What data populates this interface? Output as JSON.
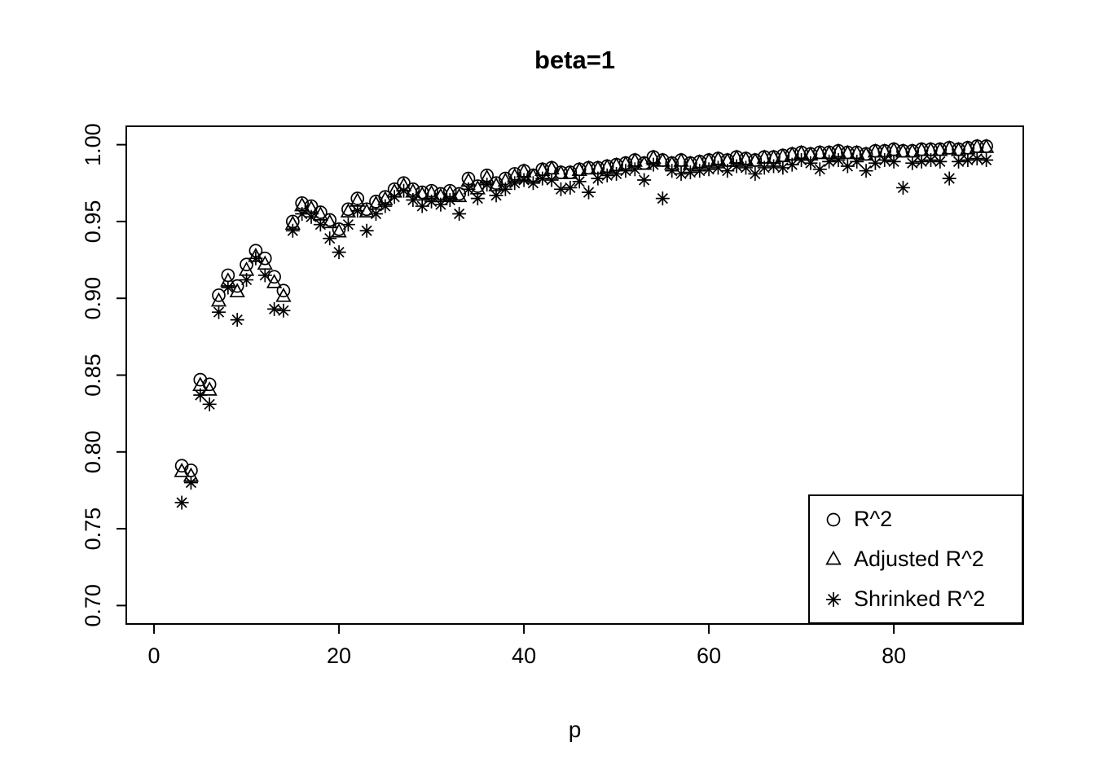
{
  "page": {
    "background": "#ffffff",
    "foreground": "#000000"
  },
  "chart_data": {
    "type": "scatter",
    "title": "beta=1",
    "xlabel": "p",
    "ylabel": "",
    "x_ticks": [
      0,
      20,
      40,
      60,
      80
    ],
    "y_ticks": [
      0.7,
      0.75,
      0.8,
      0.85,
      0.9,
      0.95,
      1.0
    ],
    "y_tick_labels": [
      "0.70",
      "0.75",
      "0.80",
      "0.85",
      "0.90",
      "0.95",
      "1.00"
    ],
    "xlim": [
      -3,
      94
    ],
    "ylim": [
      0.688,
      1.012
    ],
    "grid": false,
    "legend_position": "bottom-right",
    "x": [
      3,
      4,
      5,
      6,
      7,
      8,
      9,
      10,
      11,
      12,
      13,
      14,
      15,
      16,
      17,
      18,
      19,
      20,
      21,
      22,
      23,
      24,
      25,
      26,
      27,
      28,
      29,
      30,
      31,
      32,
      33,
      34,
      35,
      36,
      37,
      38,
      39,
      40,
      41,
      42,
      43,
      44,
      45,
      46,
      47,
      48,
      49,
      50,
      51,
      52,
      53,
      54,
      55,
      56,
      57,
      58,
      59,
      60,
      61,
      62,
      63,
      64,
      65,
      66,
      67,
      68,
      69,
      70,
      71,
      72,
      73,
      74,
      75,
      76,
      77,
      78,
      79,
      80,
      81,
      82,
      83,
      84,
      85,
      86,
      87,
      88,
      89,
      90
    ],
    "series": [
      {
        "name": "R^2",
        "symbol": "circle",
        "values": [
          0.791,
          0.788,
          0.847,
          0.844,
          0.902,
          0.915,
          0.908,
          0.922,
          0.931,
          0.926,
          0.914,
          0.905,
          0.95,
          0.962,
          0.96,
          0.956,
          0.951,
          0.945,
          0.958,
          0.965,
          0.958,
          0.963,
          0.966,
          0.971,
          0.975,
          0.971,
          0.969,
          0.97,
          0.968,
          0.97,
          0.968,
          0.978,
          0.973,
          0.98,
          0.975,
          0.978,
          0.981,
          0.983,
          0.98,
          0.984,
          0.985,
          0.982,
          0.982,
          0.984,
          0.985,
          0.985,
          0.986,
          0.987,
          0.988,
          0.99,
          0.988,
          0.992,
          0.99,
          0.988,
          0.99,
          0.988,
          0.989,
          0.99,
          0.991,
          0.99,
          0.992,
          0.991,
          0.99,
          0.992,
          0.992,
          0.993,
          0.994,
          0.995,
          0.994,
          0.995,
          0.995,
          0.996,
          0.995,
          0.995,
          0.994,
          0.996,
          0.996,
          0.997,
          0.996,
          0.996,
          0.997,
          0.997,
          0.997,
          0.998,
          0.997,
          0.998,
          0.999,
          0.999
        ]
      },
      {
        "name": "Adjusted R^2",
        "symbol": "triangle",
        "values": [
          0.787,
          0.784,
          0.843,
          0.84,
          0.898,
          0.911,
          0.904,
          0.918,
          0.927,
          0.922,
          0.91,
          0.901,
          0.948,
          0.96,
          0.958,
          0.954,
          0.949,
          0.943,
          0.956,
          0.963,
          0.956,
          0.961,
          0.964,
          0.969,
          0.973,
          0.969,
          0.967,
          0.968,
          0.966,
          0.968,
          0.966,
          0.976,
          0.971,
          0.978,
          0.973,
          0.976,
          0.979,
          0.982,
          0.979,
          0.983,
          0.984,
          0.981,
          0.981,
          0.983,
          0.984,
          0.984,
          0.985,
          0.986,
          0.987,
          0.989,
          0.987,
          0.991,
          0.989,
          0.987,
          0.989,
          0.987,
          0.988,
          0.989,
          0.99,
          0.989,
          0.991,
          0.99,
          0.989,
          0.991,
          0.991,
          0.992,
          0.993,
          0.994,
          0.993,
          0.994,
          0.994,
          0.995,
          0.994,
          0.994,
          0.993,
          0.995,
          0.995,
          0.996,
          0.995,
          0.995,
          0.996,
          0.996,
          0.996,
          0.997,
          0.996,
          0.997,
          0.998,
          0.998
        ]
      },
      {
        "name": "Shrinked R^2",
        "symbol": "asterisk",
        "values": [
          0.767,
          0.78,
          0.837,
          0.831,
          0.891,
          0.907,
          0.886,
          0.912,
          0.926,
          0.915,
          0.893,
          0.892,
          0.944,
          0.955,
          0.953,
          0.948,
          0.939,
          0.93,
          0.948,
          0.957,
          0.944,
          0.955,
          0.96,
          0.966,
          0.97,
          0.964,
          0.96,
          0.963,
          0.961,
          0.964,
          0.955,
          0.971,
          0.965,
          0.974,
          0.967,
          0.971,
          0.975,
          0.977,
          0.975,
          0.978,
          0.977,
          0.971,
          0.972,
          0.976,
          0.969,
          0.978,
          0.98,
          0.981,
          0.983,
          0.984,
          0.977,
          0.987,
          0.965,
          0.983,
          0.981,
          0.982,
          0.983,
          0.984,
          0.985,
          0.983,
          0.986,
          0.985,
          0.981,
          0.985,
          0.986,
          0.985,
          0.987,
          0.99,
          0.988,
          0.984,
          0.989,
          0.99,
          0.986,
          0.989,
          0.983,
          0.988,
          0.99,
          0.989,
          0.972,
          0.988,
          0.989,
          0.99,
          0.989,
          0.978,
          0.989,
          0.99,
          0.991,
          0.99
        ]
      }
    ],
    "colors": {
      "foreground": "#000000",
      "background": "#ffffff"
    }
  }
}
